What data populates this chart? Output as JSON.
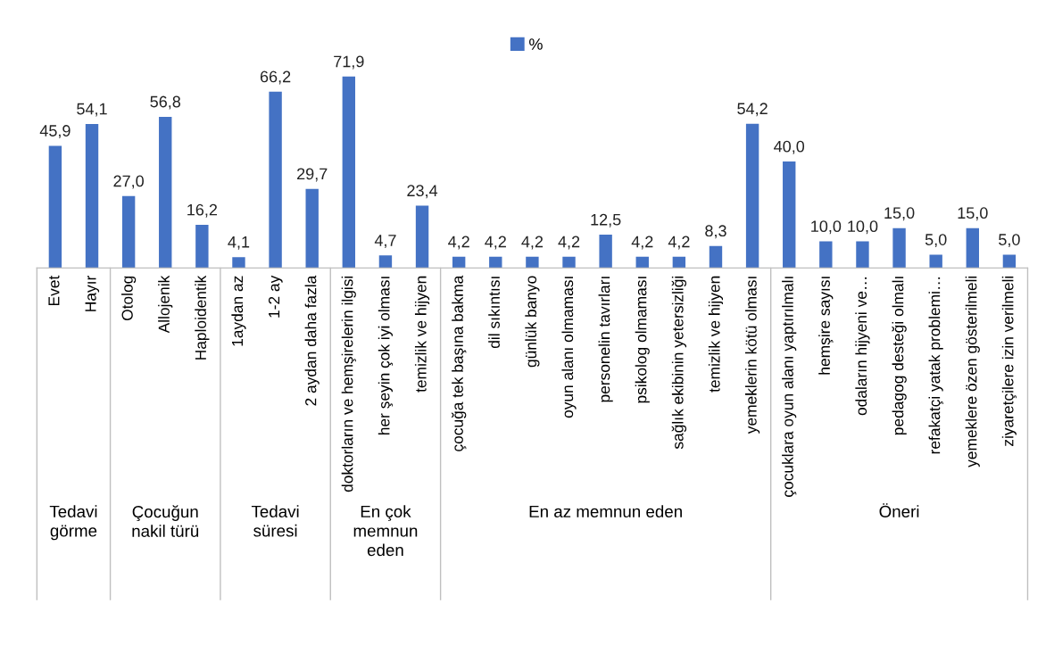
{
  "chart_data": {
    "type": "bar",
    "categories": [
      "Evet",
      "Hayır",
      "Otolog",
      "Allojenik",
      "Haploidentik",
      "1aydan az",
      "1-2 ay",
      "2 aydan daha fazla",
      "doktorların ve hemşirelerin ilgisi",
      "her şeyin çok iyi olması",
      "temizlik ve hijyen",
      "çocuğa tek başına bakma",
      "dil sıkıntısı",
      "günlük banyo",
      "oyun alanı olmaması",
      "personelin tavırları",
      "psikolog olmaması",
      "sağlık ekibinin yetersizliği",
      "temizlik ve hijyen",
      "yemeklerin kötü olması",
      "çocuklara oyun alanı yaptırılmalı",
      "hemşire sayısı",
      "odaların hijyeni ve…",
      "pedagog desteği olmalı",
      "refakatçi yatak problemi…",
      "yemeklere özen gösterilmeli",
      "ziyaretçilere izin verilmeli"
    ],
    "series": [
      {
        "name": "%",
        "color": "#4472c4",
        "values": [
          45.9,
          54.1,
          27.0,
          56.8,
          16.2,
          4.1,
          66.2,
          29.7,
          71.9,
          4.7,
          23.4,
          4.2,
          4.2,
          4.2,
          4.2,
          12.5,
          4.2,
          4.2,
          8.3,
          54.2,
          40.0,
          10.0,
          10.0,
          15.0,
          5.0,
          15.0,
          5.0
        ],
        "value_labels": [
          "45,9",
          "54,1",
          "27,0",
          "56,8",
          "16,2",
          "4,1",
          "66,2",
          "29,7",
          "71,9",
          "4,7",
          "23,4",
          "4,2",
          "4,2",
          "4,2",
          "4,2",
          "12,5",
          "4,2",
          "4,2",
          "8,3",
          "54,2",
          "40,0",
          "10,0",
          "10,0",
          "15,0",
          "5,0",
          "15,0",
          "5,0"
        ]
      }
    ],
    "annotations": [
      "Tedavi\ngörme",
      "Çocuğun\nnakil türü",
      "Tedavi\nsüresi",
      "En çok\nmemnun\neden",
      "En az memnun eden",
      "Öneri"
    ],
    "legend": "top",
    "grid": false
  }
}
